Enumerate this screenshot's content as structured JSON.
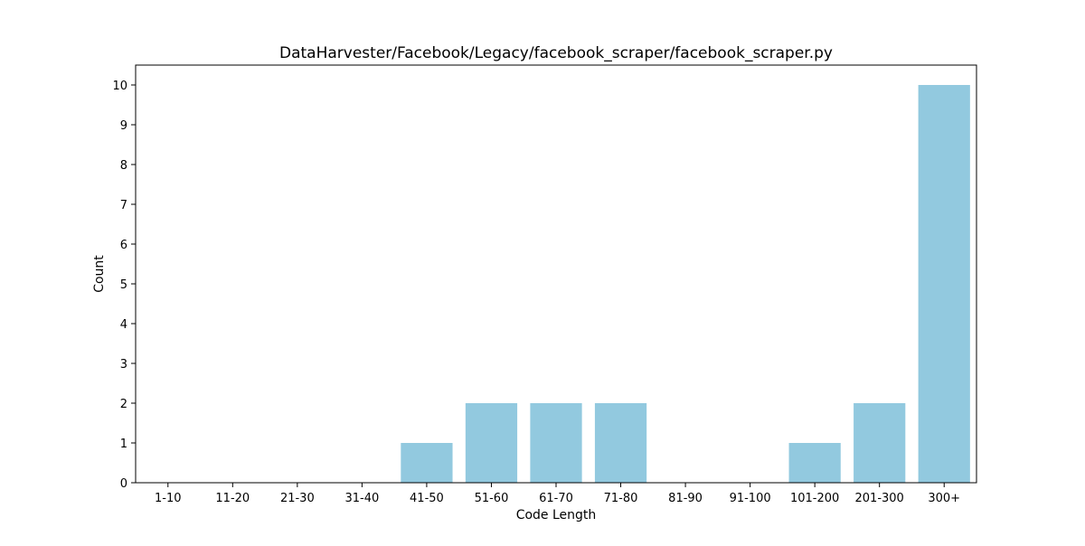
{
  "chart_data": {
    "type": "bar",
    "title": "DataHarvester/Facebook/Legacy/facebook_scraper/facebook_scraper.py",
    "xlabel": "Code Length",
    "ylabel": "Count",
    "categories": [
      "1-10",
      "11-20",
      "21-30",
      "31-40",
      "41-50",
      "51-60",
      "61-70",
      "71-80",
      "81-90",
      "91-100",
      "101-200",
      "201-300",
      "300+"
    ],
    "values": [
      0,
      0,
      0,
      0,
      1,
      2,
      2,
      2,
      0,
      0,
      1,
      2,
      10
    ],
    "ylim": [
      0,
      10.5
    ],
    "yticks": [
      0,
      1,
      2,
      3,
      4,
      5,
      6,
      7,
      8,
      9,
      10
    ],
    "bar_color": "#92c9df",
    "grid": false,
    "legend": "none"
  }
}
